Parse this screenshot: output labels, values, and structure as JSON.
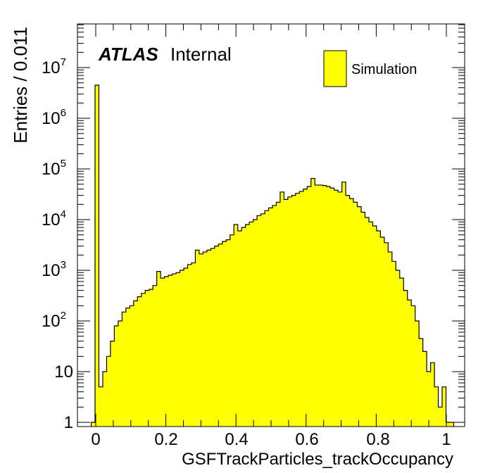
{
  "chart_data": {
    "type": "bar",
    "style": "histogram-step",
    "yscale": "log",
    "xlabel": "GSFTrackParticles_trackOccupancy",
    "ylabel": "Entries / 0.011",
    "xlim": [
      -0.025,
      1.025
    ],
    "ylim": [
      0.8,
      100000000
    ],
    "x_ticks": [
      "0",
      "0.2",
      "0.4",
      "0.6",
      "0.8",
      "1"
    ],
    "y_ticks": [
      {
        "base": "1",
        "exp": ""
      },
      {
        "base": "10",
        "exp": ""
      },
      {
        "base": "10",
        "exp": "2"
      },
      {
        "base": "10",
        "exp": "3"
      },
      {
        "base": "10",
        "exp": "4"
      },
      {
        "base": "10",
        "exp": "5"
      },
      {
        "base": "10",
        "exp": "6"
      },
      {
        "base": "10",
        "exp": "7"
      }
    ],
    "fill_color": "#ffff00",
    "line_color": "#000000",
    "legend_position": "top-right",
    "series": [
      {
        "name": "Simulation",
        "x": [
          -0.0075,
          0.0035,
          0.0145,
          0.0255,
          0.0365,
          0.0475,
          0.0585,
          0.0695,
          0.0805,
          0.0915,
          0.1025,
          0.1135,
          0.1245,
          0.1355,
          0.1465,
          0.1575,
          0.1685,
          0.1795,
          0.1905,
          0.2015,
          0.2125,
          0.2235,
          0.2345,
          0.2455,
          0.2565,
          0.2675,
          0.2785,
          0.2895,
          0.3005,
          0.3115,
          0.3225,
          0.3335,
          0.3445,
          0.3555,
          0.3665,
          0.3775,
          0.3885,
          0.3995,
          0.4105,
          0.4215,
          0.4325,
          0.4435,
          0.4545,
          0.4655,
          0.4765,
          0.4875,
          0.4985,
          0.5095,
          0.5205,
          0.5315,
          0.5425,
          0.5535,
          0.5645,
          0.5755,
          0.5865,
          0.5975,
          0.6085,
          0.6195,
          0.6305,
          0.6415,
          0.6525,
          0.6635,
          0.6745,
          0.6855,
          0.6965,
          0.7075,
          0.7185,
          0.7295,
          0.7405,
          0.7515,
          0.7625,
          0.7735,
          0.7845,
          0.7955,
          0.8065,
          0.8175,
          0.8285,
          0.8395,
          0.8505,
          0.8615,
          0.8725,
          0.8835,
          0.8945,
          0.9055,
          0.9165,
          0.9275,
          0.9385,
          0.9495,
          0.9605,
          0.9715,
          0.9825,
          0.9935,
          1.0045,
          1.0155
        ],
        "values": [
          1,
          4500000,
          5,
          10,
          20,
          40,
          80,
          100,
          150,
          180,
          200,
          250,
          300,
          350,
          400,
          420,
          500,
          950,
          700,
          750,
          800,
          850,
          900,
          1000,
          1100,
          1300,
          1400,
          2500,
          2100,
          2300,
          2500,
          2700,
          3000,
          3300,
          3700,
          4000,
          5000,
          8000,
          6000,
          7000,
          8000,
          9000,
          10000,
          12000,
          13000,
          15000,
          17000,
          19000,
          22000,
          35000,
          25000,
          28000,
          30000,
          33000,
          36000,
          40000,
          45000,
          65000,
          48000,
          48000,
          47000,
          45000,
          42000,
          38000,
          35000,
          55000,
          30000,
          26000,
          22000,
          18000,
          14000,
          11000,
          9000,
          7500,
          6000,
          4500,
          3500,
          2300,
          1500,
          1000,
          700,
          400,
          260,
          200,
          100,
          45,
          25,
          10,
          15,
          5,
          2,
          5,
          1,
          1
        ]
      }
    ]
  },
  "header": {
    "experiment": "ATLAS",
    "status": "Internal"
  }
}
